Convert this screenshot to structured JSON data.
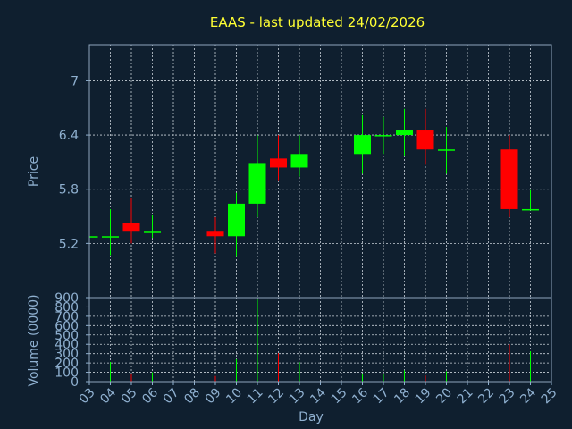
{
  "chart_data": {
    "type": "candlestick",
    "title": "EAAS - last updated 24/02/2026",
    "xlabel": "Day",
    "ylabel": "Price",
    "volume_label": "Volume (0000)",
    "x": [
      3,
      4,
      5,
      6,
      9,
      10,
      11,
      12,
      13,
      16,
      17,
      18,
      19,
      20,
      23,
      24
    ],
    "open": [
      5.28,
      5.27,
      5.43,
      5.33,
      5.33,
      5.28,
      5.64,
      6.14,
      6.04,
      6.19,
      6.39,
      6.4,
      6.45,
      6.24,
      6.24,
      5.58
    ],
    "high": [
      5.28,
      5.58,
      5.7,
      5.51,
      5.49,
      5.76,
      6.4,
      6.4,
      6.4,
      6.62,
      6.6,
      6.69,
      6.69,
      6.49,
      6.4,
      5.79
    ],
    "low": [
      5.28,
      5.07,
      5.2,
      5.26,
      5.09,
      5.06,
      5.49,
      5.9,
      5.94,
      5.97,
      6.19,
      6.17,
      6.07,
      5.97,
      5.49,
      5.58
    ],
    "close": [
      5.28,
      5.28,
      5.33,
      5.33,
      5.28,
      5.64,
      6.09,
      6.04,
      6.19,
      6.4,
      6.4,
      6.45,
      6.24,
      6.24,
      5.58,
      5.58
    ],
    "volume": [
      0,
      210,
      80,
      100,
      60,
      240,
      880,
      305,
      210,
      85,
      85,
      120,
      65,
      110,
      400,
      325
    ],
    "up_color": "#00ff00",
    "down_color": "#ff0000",
    "xlim": [
      3,
      25
    ],
    "xticks": [
      {
        "value": 3,
        "label": "03"
      },
      {
        "value": 4,
        "label": "04"
      },
      {
        "value": 5,
        "label": "05"
      },
      {
        "value": 6,
        "label": "06"
      },
      {
        "value": 7,
        "label": "07"
      },
      {
        "value": 8,
        "label": "08"
      },
      {
        "value": 9,
        "label": "09"
      },
      10,
      11,
      12,
      13,
      14,
      15,
      16,
      17,
      18,
      19,
      20,
      21,
      22,
      23,
      24,
      25
    ],
    "ylim": [
      4.6,
      7.4
    ],
    "yticks": [
      5.2,
      5.8,
      6.4,
      7
    ],
    "volume_ylim": [
      0,
      900
    ],
    "volume_ticks": [
      0,
      100,
      200,
      300,
      400,
      500,
      600,
      700,
      800,
      900
    ],
    "grid": true
  }
}
